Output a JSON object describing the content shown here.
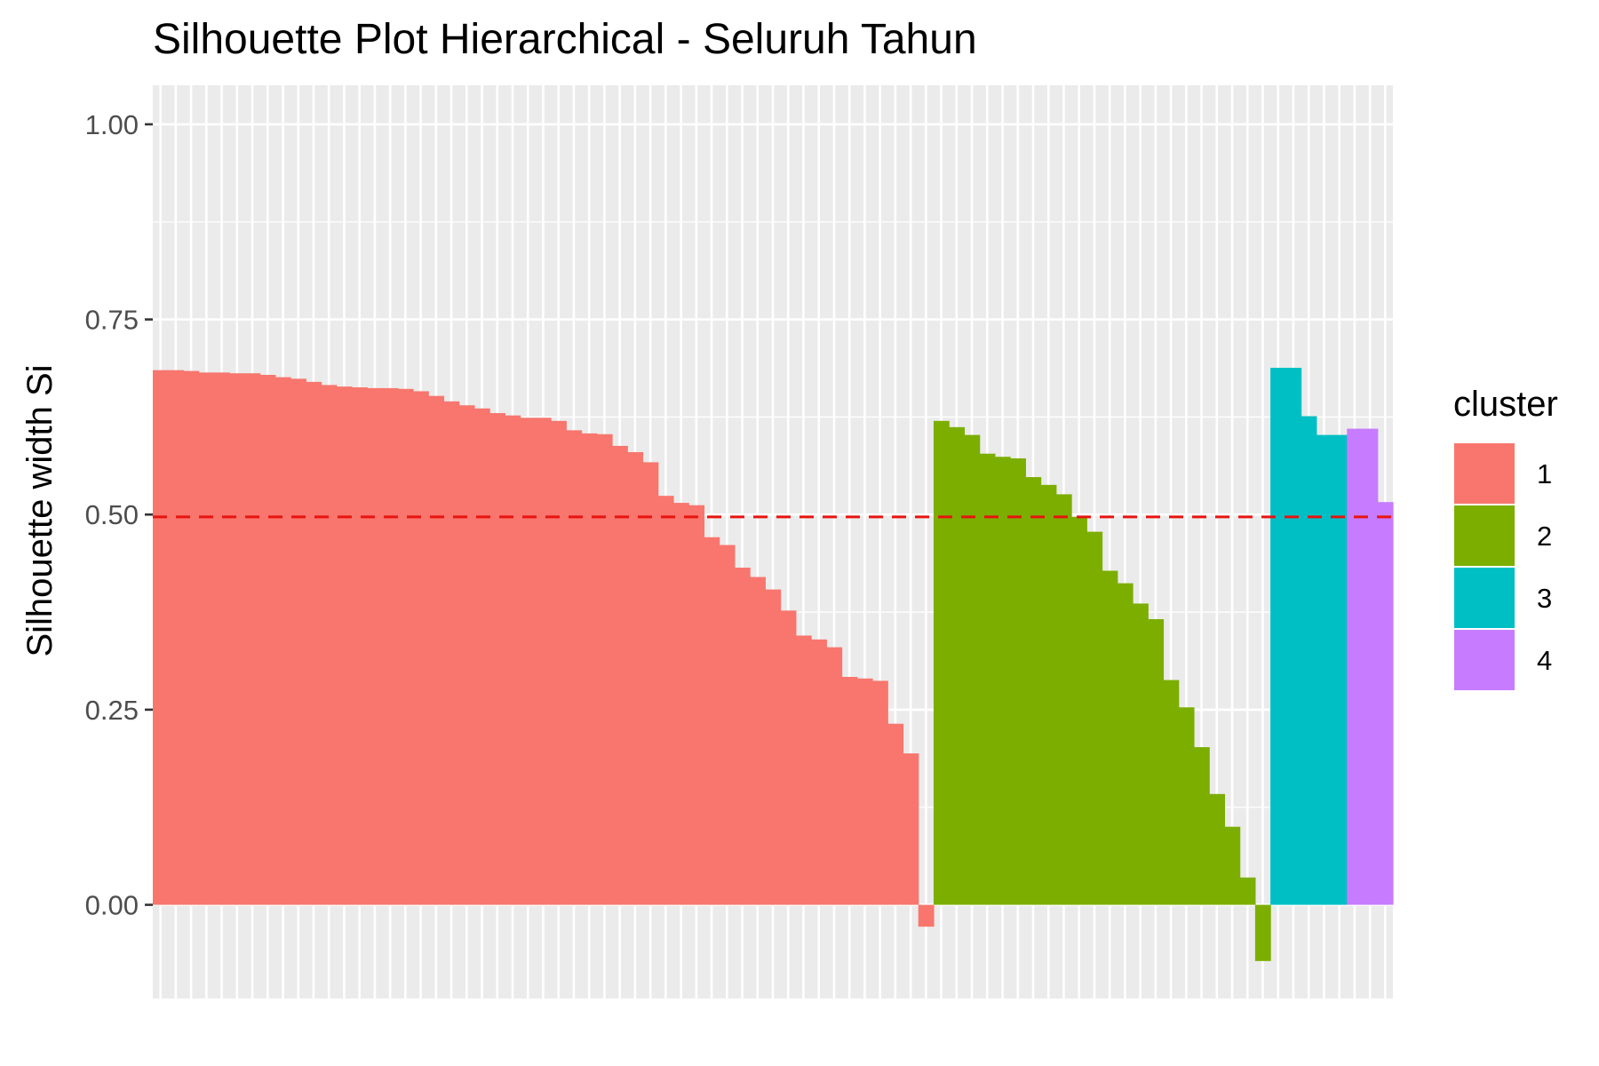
{
  "chart_data": {
    "type": "bar",
    "title": "Silhouette Plot Hierarchical - Seluruh Tahun",
    "xlabel": "",
    "ylabel": "Silhouette width Si",
    "ylim": [
      -0.12,
      1.05
    ],
    "yticks": [
      {
        "value": 0.0,
        "label": "0.00"
      },
      {
        "value": 0.25,
        "label": "0.25"
      },
      {
        "value": 0.5,
        "label": "0.50"
      },
      {
        "value": 0.75,
        "label": "0.75"
      },
      {
        "value": 1.0,
        "label": "1.00"
      }
    ],
    "grid": true,
    "average_line": {
      "value": 0.497,
      "color": "#E8130F",
      "style": "dashed"
    },
    "legend": {
      "title": "cluster",
      "position": "right",
      "entries": [
        {
          "label": "1",
          "color": "#F8766D"
        },
        {
          "label": "2",
          "color": "#7CAE00"
        },
        {
          "label": "3",
          "color": "#00BFC4"
        },
        {
          "label": "4",
          "color": "#C77CFF"
        }
      ]
    },
    "series": [
      {
        "name": "1",
        "color": "#F8766D",
        "values": [
          0.685,
          0.685,
          0.684,
          0.682,
          0.682,
          0.681,
          0.681,
          0.679,
          0.676,
          0.674,
          0.67,
          0.666,
          0.664,
          0.663,
          0.662,
          0.662,
          0.661,
          0.658,
          0.652,
          0.645,
          0.64,
          0.636,
          0.63,
          0.627,
          0.624,
          0.624,
          0.62,
          0.608,
          0.604,
          0.603,
          0.588,
          0.58,
          0.567,
          0.524,
          0.515,
          0.512,
          0.471,
          0.461,
          0.432,
          0.42,
          0.404,
          0.377,
          0.345,
          0.34,
          0.33,
          0.292,
          0.29,
          0.287,
          0.232,
          0.194,
          -0.028
        ]
      },
      {
        "name": "2",
        "color": "#7CAE00",
        "values": [
          0.62,
          0.612,
          0.602,
          0.578,
          0.574,
          0.572,
          0.548,
          0.538,
          0.526,
          0.497,
          0.478,
          0.428,
          0.412,
          0.386,
          0.366,
          0.288,
          0.253,
          0.202,
          0.142,
          0.1,
          0.035,
          -0.072
        ]
      },
      {
        "name": "3",
        "color": "#00BFC4",
        "values": [
          0.688,
          0.688,
          0.626,
          0.602,
          0.602
        ]
      },
      {
        "name": "4",
        "color": "#C77CFF",
        "values": [
          0.61,
          0.61,
          0.516
        ]
      }
    ]
  }
}
